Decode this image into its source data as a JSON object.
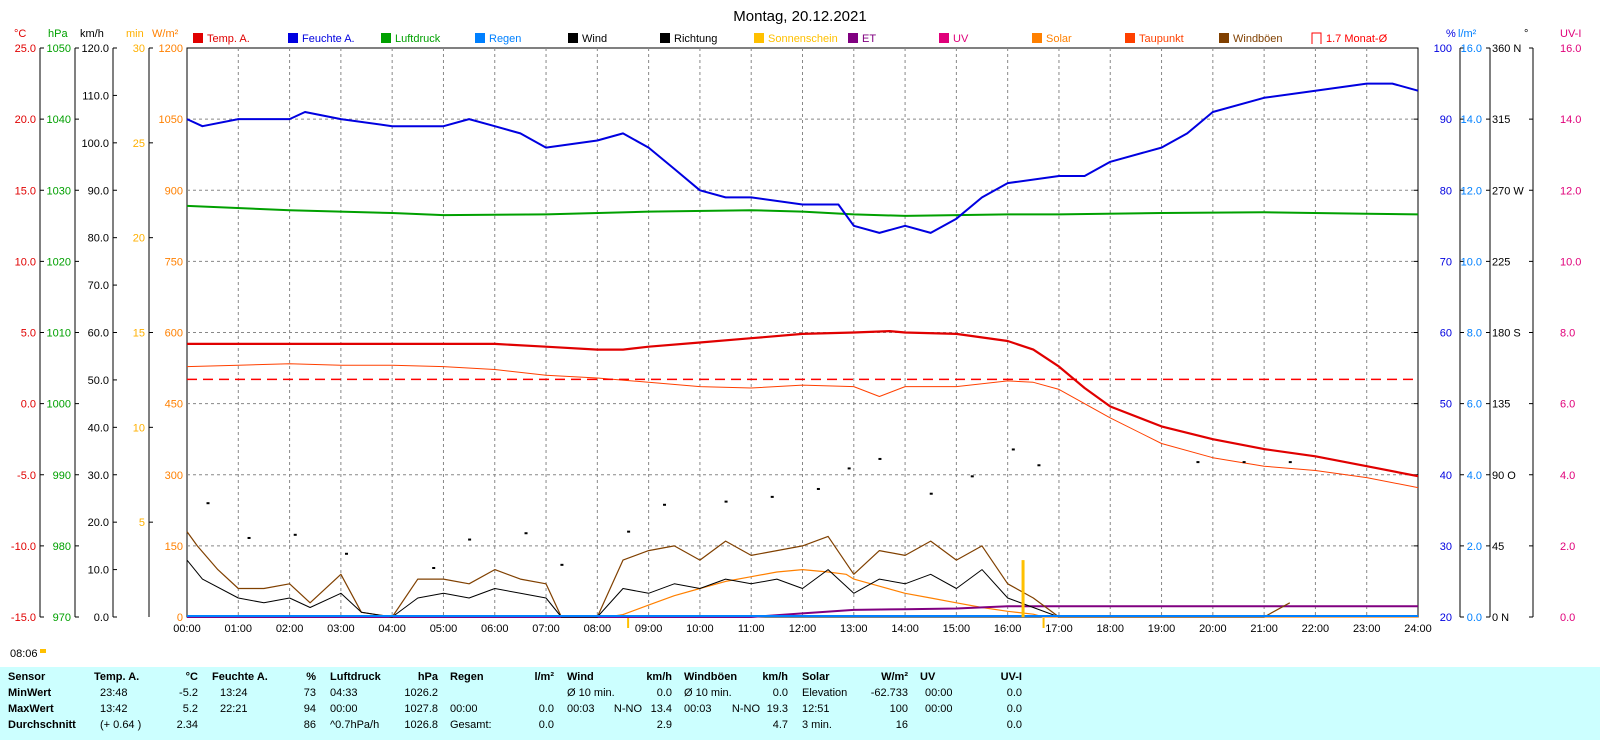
{
  "title": "Montag, 20.12.2021",
  "colors": {
    "temp": "#e00000",
    "humidity": "#0000e0",
    "pressure": "#00a000",
    "rain": "#0080ff",
    "wind": "#000000",
    "direction": "#000000",
    "sunshine": "#ffc000",
    "et": "#800080",
    "uv": "#e0007a",
    "solar": "#ff8000",
    "dewpoint": "#ff4000",
    "gusts": "#804000",
    "avg": "#ff0000"
  },
  "axes_labels": {
    "temp_unit": "°C",
    "pressure_unit": "hPa",
    "wind_unit": "km/h",
    "min_unit": "min",
    "solar_unit": "W/m²",
    "humidity_unit": "%",
    "rain_unit": "l/m²",
    "direction_unit": "°",
    "uv_unit": "UV-I"
  },
  "legend": [
    {
      "label": "Temp. A.",
      "color": "#e00000"
    },
    {
      "label": "Feuchte A.",
      "color": "#0000e0"
    },
    {
      "label": "Luftdruck",
      "color": "#00a000"
    },
    {
      "label": "Regen",
      "color": "#0080ff"
    },
    {
      "label": "Wind",
      "color": "#000000"
    },
    {
      "label": "Richtung",
      "color": "#000000"
    },
    {
      "label": "Sonnenschein",
      "color": "#ffc000"
    },
    {
      "label": "ET",
      "color": "#800080"
    },
    {
      "label": "UV",
      "color": "#e0007a"
    },
    {
      "label": "Solar",
      "color": "#ff8000"
    },
    {
      "label": "Taupunkt",
      "color": "#ff4000"
    },
    {
      "label": "Windböen",
      "color": "#804000"
    },
    {
      "label": "1.7 Monat-Ø",
      "color": "#ff0000"
    }
  ],
  "sunrise_label": "08:06",
  "chart_data": {
    "type": "line",
    "x_ticks": [
      "00:00",
      "01:00",
      "02:00",
      "03:00",
      "04:00",
      "05:00",
      "06:00",
      "07:00",
      "08:00",
      "09:00",
      "10:00",
      "11:00",
      "12:00",
      "13:00",
      "14:00",
      "15:00",
      "16:00",
      "17:00",
      "18:00",
      "19:00",
      "20:00",
      "21:00",
      "22:00",
      "23:00",
      "24:00"
    ],
    "axes": {
      "temp": {
        "ticks": [
          "25.0",
          "20.0",
          "15.0",
          "10.0",
          "5.0",
          "0.0",
          "-5.0",
          "-10.0",
          "-15.0"
        ],
        "ylim": [
          -15,
          25
        ]
      },
      "pressure": {
        "ticks": [
          "1050",
          "1040",
          "1030",
          "1020",
          "1010",
          "1000",
          "990",
          "980",
          "970"
        ],
        "ylim": [
          970,
          1050
        ]
      },
      "wind": {
        "ticks": [
          "120.0",
          "110.0",
          "100.0",
          "90.0",
          "80.0",
          "70.0",
          "60.0",
          "50.0",
          "40.0",
          "30.0",
          "20.0",
          "10.0",
          "0.0"
        ],
        "ylim": [
          0,
          120
        ]
      },
      "minutes": {
        "ticks": [
          "30",
          "25",
          "20",
          "15",
          "10",
          "5"
        ],
        "ylim": [
          0,
          30
        ]
      },
      "solar": {
        "ticks": [
          "1200",
          "1050",
          "900",
          "750",
          "600",
          "450",
          "300",
          "150",
          "0"
        ],
        "ylim": [
          0,
          1200
        ]
      },
      "humidity": {
        "ticks": [
          "100",
          "90",
          "80",
          "70",
          "60",
          "50",
          "40",
          "30",
          "20"
        ],
        "ylim": [
          20,
          100
        ]
      },
      "rain": {
        "ticks": [
          "16.0",
          "14.0",
          "12.0",
          "10.0",
          "8.0",
          "6.0",
          "4.0",
          "2.0",
          "0.0"
        ],
        "ylim": [
          0,
          16
        ]
      },
      "direction": {
        "ticks": [
          "360 N",
          "315",
          "270 W",
          "225",
          "180 S",
          "135",
          "90 O",
          "45",
          "0 N"
        ],
        "ylim": [
          0,
          360
        ]
      },
      "uv": {
        "ticks": [
          "16.0",
          "14.0",
          "12.0",
          "10.0",
          "8.0",
          "6.0",
          "4.0",
          "2.0",
          "0.0"
        ],
        "ylim": [
          0,
          16
        ]
      }
    },
    "series": [
      {
        "name": "Temp. A.",
        "axis": "temp",
        "x": [
          0,
          1,
          2,
          3,
          4,
          5,
          6,
          7,
          8,
          8.5,
          9,
          10,
          11,
          12,
          13,
          13.7,
          14,
          15,
          16,
          16.5,
          17,
          17.5,
          18,
          19,
          20,
          21,
          22,
          23,
          24
        ],
        "values": [
          4.2,
          4.2,
          4.2,
          4.2,
          4.2,
          4.2,
          4.2,
          4.0,
          3.8,
          3.8,
          4.0,
          4.3,
          4.6,
          4.9,
          5.0,
          5.1,
          5.0,
          4.9,
          4.4,
          3.8,
          2.6,
          1.1,
          -0.2,
          -1.6,
          -2.5,
          -3.2,
          -3.7,
          -4.4,
          -5.1
        ]
      },
      {
        "name": "Feuchte A.",
        "axis": "humidity",
        "x": [
          0,
          0.3,
          1,
          2,
          2.3,
          3,
          4,
          5,
          5.5,
          6,
          6.5,
          7,
          8,
          8.5,
          9,
          9.5,
          10,
          10.5,
          11,
          12,
          12.7,
          13,
          13.5,
          14,
          14.5,
          15,
          15.5,
          16,
          17,
          17.5,
          18,
          19,
          19.5,
          20,
          21,
          22,
          23,
          23.5,
          24
        ],
        "values": [
          90,
          89,
          90,
          90,
          91,
          90,
          89,
          89,
          90,
          89,
          88,
          86,
          87,
          88,
          86,
          83,
          80,
          79,
          79,
          78,
          78,
          75,
          74,
          75,
          74,
          76,
          79,
          81,
          82,
          82,
          84,
          86,
          88,
          91,
          93,
          94,
          95,
          95,
          94
        ]
      },
      {
        "name": "Luftdruck",
        "axis": "pressure",
        "x": [
          0,
          2,
          4,
          5,
          7,
          9,
          11,
          12,
          13,
          14,
          15,
          16,
          17,
          19,
          21,
          23,
          24
        ],
        "values": [
          1027.8,
          1027.2,
          1026.8,
          1026.5,
          1026.6,
          1027.0,
          1027.2,
          1027.0,
          1026.6,
          1026.4,
          1026.5,
          1026.6,
          1026.6,
          1026.8,
          1026.9,
          1026.7,
          1026.6
        ]
      },
      {
        "name": "Taupunkt",
        "axis": "temp",
        "x": [
          0,
          1,
          2,
          3,
          4,
          5,
          6,
          7,
          8,
          9,
          10,
          11,
          12,
          13,
          13.5,
          14,
          15,
          16,
          16.5,
          17,
          18,
          19,
          20,
          21,
          22,
          23,
          24
        ],
        "values": [
          2.6,
          2.7,
          2.8,
          2.7,
          2.7,
          2.6,
          2.4,
          2.0,
          1.8,
          1.5,
          1.2,
          1.1,
          1.3,
          1.2,
          0.5,
          1.2,
          1.2,
          1.6,
          1.5,
          1.0,
          -1.0,
          -2.8,
          -3.8,
          -4.4,
          -4.7,
          -5.2,
          -5.9
        ]
      },
      {
        "name": "1.7 Monat-Ø",
        "axis": "temp",
        "x": [
          0,
          24
        ],
        "values": [
          1.7,
          1.7
        ]
      },
      {
        "name": "Wind",
        "axis": "wind",
        "x": [
          0,
          0.3,
          1,
          1.5,
          2,
          2.4,
          3,
          3.4,
          4,
          4.5,
          5,
          5.5,
          6,
          6.5,
          7,
          7.3,
          8,
          8.5,
          9,
          9.5,
          10,
          10.5,
          11,
          11.5,
          12,
          12.5,
          13,
          13.5,
          14,
          14.5,
          15,
          15.5,
          16,
          16.5,
          17
        ],
        "values": [
          12,
          8,
          4,
          3,
          4,
          2,
          5,
          1,
          0,
          4,
          5,
          4,
          6,
          5,
          4,
          0,
          0,
          6,
          5,
          7,
          6,
          8,
          7,
          8,
          6,
          10,
          5,
          8,
          7,
          9,
          6,
          10,
          4,
          2,
          0
        ]
      },
      {
        "name": "Windböen",
        "axis": "wind",
        "x": [
          0,
          0.2,
          0.6,
          1,
          1.5,
          2,
          2.4,
          3,
          3.4,
          4,
          4.5,
          5,
          5.5,
          6,
          6.5,
          7,
          7.3,
          8,
          8.5,
          9,
          9.5,
          10,
          10.5,
          11,
          11.5,
          12,
          12.5,
          13,
          13.5,
          14,
          14.5,
          15,
          15.5,
          16,
          16.5,
          17,
          21,
          21.5
        ],
        "values": [
          18,
          15,
          10,
          6,
          6,
          7,
          3,
          9,
          1,
          0,
          8,
          8,
          7,
          10,
          8,
          7,
          0,
          0,
          12,
          14,
          15,
          12,
          16,
          13,
          14,
          15,
          17,
          9,
          14,
          13,
          16,
          12,
          15,
          7,
          4,
          0,
          0,
          3
        ]
      },
      {
        "name": "Solar",
        "axis": "solar",
        "x": [
          0,
          8.2,
          8.5,
          9,
          9.5,
          10,
          10.5,
          11,
          11.5,
          12,
          12.5,
          12.85,
          13,
          13.5,
          14,
          14.5,
          15,
          15.5,
          16,
          16.5,
          16.7,
          24
        ],
        "values": [
          0,
          0,
          5,
          25,
          45,
          60,
          75,
          85,
          95,
          100,
          95,
          90,
          80,
          65,
          50,
          40,
          30,
          20,
          12,
          6,
          0,
          0
        ]
      },
      {
        "name": "ET",
        "axis": "rain",
        "x": [
          0,
          11,
          12,
          13,
          14,
          15,
          16,
          24
        ],
        "values": [
          0,
          0,
          0.1,
          0.2,
          0.22,
          0.24,
          0.3,
          0.3
        ]
      },
      {
        "name": "Richtung",
        "axis": "direction",
        "x": [
          0.4,
          1.2,
          2.1,
          3.1,
          4.8,
          5.5,
          6.6,
          7.3,
          8.6,
          9.3,
          10.5,
          11.4,
          12.3,
          12.9,
          13.5,
          14.5,
          15.3,
          16.1,
          16.6,
          19.7,
          20.6,
          21.5
        ],
        "values": [
          72,
          50,
          52,
          40,
          31,
          49,
          53,
          33,
          54,
          71,
          73,
          76,
          81,
          94,
          100,
          78,
          89,
          106,
          96,
          98,
          98,
          98
        ]
      }
    ],
    "sunshine_marker": {
      "x": 16.3,
      "minutes": 3
    }
  },
  "table": {
    "headers": {
      "sensor": "Sensor",
      "temp": "Temp. A.",
      "temp_u": "°C",
      "hum": "Feuchte A.",
      "hum_u": "%",
      "press": "Luftdruck",
      "press_u": "hPa",
      "rain": "Regen",
      "rain_u": "l/m²",
      "wind": "Wind",
      "wind_u": "km/h",
      "gust": "Windböen",
      "gust_u": "km/h",
      "solar": "Solar",
      "solar_u": "W/m²",
      "uv": "UV",
      "uv_u": "UV-I"
    },
    "rows": [
      {
        "label": "MinWert",
        "temp_t": "23:48",
        "temp_v": "-5.2",
        "hum_t": "13:24",
        "hum_v": "73",
        "press_t": "04:33",
        "press_v": "1026.2",
        "rain_t": "",
        "rain_v": "",
        "wind_t": "Ø 10 min.",
        "wind_dir": "",
        "wind_v": "0.0",
        "gust_t": "Ø 10 min.",
        "gust_dir": "",
        "gust_v": "0.0",
        "solar_t": "Elevation",
        "solar_v": "-62.733",
        "uv_t": "00:00",
        "uv_v": "0.0"
      },
      {
        "label": "MaxWert",
        "temp_t": "13:42",
        "temp_v": "5.2",
        "hum_t": "22:21",
        "hum_v": "94",
        "press_t": "00:00",
        "press_v": "1027.8",
        "rain_t": "00:00",
        "rain_v": "0.0",
        "wind_t": "00:03",
        "wind_dir": "N-NO",
        "wind_v": "13.4",
        "gust_t": "00:03",
        "gust_dir": "N-NO",
        "gust_v": "19.3",
        "solar_t": "12:51",
        "solar_v": "100",
        "uv_t": "00:00",
        "uv_v": "0.0"
      },
      {
        "label": "Durchschnitt",
        "temp_t": "(+ 0.64 )",
        "temp_v": "2.34",
        "hum_t": "",
        "hum_v": "86",
        "press_t": "^0.7hPa/h",
        "press_v": "1026.8",
        "rain_t": "Gesamt:",
        "rain_v": "0.0",
        "wind_t": "",
        "wind_dir": "",
        "wind_v": "2.9",
        "gust_t": "",
        "gust_dir": "",
        "gust_v": "4.7",
        "solar_t": "3 min.",
        "solar_v": "16",
        "uv_t": "",
        "uv_v": "0.0"
      }
    ]
  }
}
